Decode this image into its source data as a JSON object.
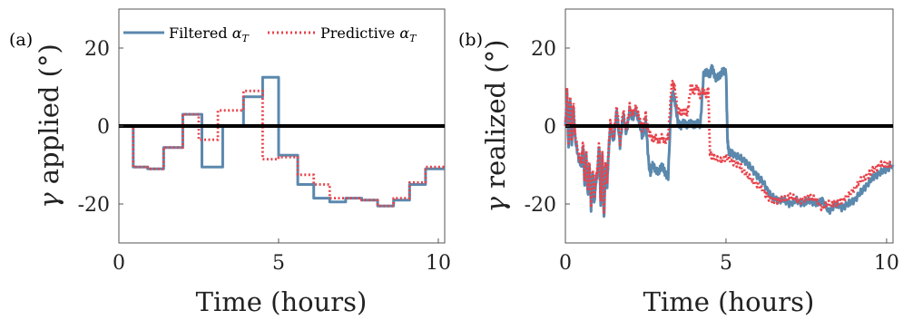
{
  "colors": {
    "filtered": "#5b88ad",
    "predictive": "#e8434b",
    "zero": "#000000"
  },
  "chart_data": [
    {
      "type": "line",
      "panel_label": "(a)",
      "xlabel": "Time (hours)",
      "ylabel_symbol": "γ",
      "ylabel_text": " applied (°)",
      "xlim": [
        0,
        10.2
      ],
      "ylim": [
        -30,
        30
      ],
      "xticks": [
        "0",
        "5",
        "10"
      ],
      "xtick_values": [
        0,
        5,
        10
      ],
      "yticks": [
        "-20",
        "0",
        "20"
      ],
      "ytick_values": [
        -20,
        0,
        20
      ],
      "grid": false,
      "legend": {
        "placement": "top",
        "entries": [
          {
            "label": "Filtered ",
            "symbol": "α",
            "sub": "T",
            "series": "filtered"
          },
          {
            "label": "Predictive ",
            "symbol": "α",
            "sub": "T",
            "series": "predictive"
          }
        ]
      },
      "series": [
        {
          "key": "filtered",
          "style": "solid",
          "step": true,
          "x": [
            0,
            0.45,
            0.9,
            1.4,
            2.0,
            2.6,
            3.25,
            3.9,
            4.5,
            5.0,
            5.6,
            6.1,
            6.6,
            7.1,
            7.6,
            8.1,
            8.6,
            9.1,
            9.6,
            10.2
          ],
          "y": [
            0,
            -10.5,
            -11,
            -5.5,
            3,
            -10.5,
            0,
            7.5,
            12.5,
            -7.5,
            -15,
            -18.5,
            -19.5,
            -18.5,
            -19,
            -20.5,
            -19,
            -15,
            -11,
            -11
          ]
        },
        {
          "key": "predictive",
          "style": "dotted",
          "step": true,
          "x": [
            0,
            0.45,
            0.9,
            1.4,
            2.0,
            2.5,
            3.1,
            3.9,
            4.5,
            5.0,
            5.6,
            6.1,
            6.6,
            7.1,
            7.6,
            8.1,
            8.6,
            9.1,
            9.6,
            10.2
          ],
          "y": [
            0,
            -10.5,
            -11,
            -5.5,
            3,
            -3.5,
            4,
            9,
            -8.5,
            -8,
            -12.5,
            -15,
            -18.5,
            -18.5,
            -19,
            -20.5,
            -18.5,
            -14.5,
            -10.5,
            -10.5
          ]
        }
      ]
    },
    {
      "type": "line",
      "panel_label": "(b)",
      "xlabel": "Time (hours)",
      "ylabel_symbol": "γ",
      "ylabel_text": " realized (°)",
      "xlim": [
        0,
        10.2
      ],
      "ylim": [
        -30,
        30
      ],
      "xticks": [
        "0",
        "5",
        "10"
      ],
      "xtick_values": [
        0,
        5,
        10
      ],
      "yticks": [
        "-20",
        "0",
        "20"
      ],
      "ytick_values": [
        -20,
        0,
        20
      ],
      "grid": false,
      "series": [
        {
          "key": "filtered",
          "style": "solid",
          "step": false,
          "x": [
            0,
            0.05,
            0.1,
            0.15,
            0.2,
            0.25,
            0.3,
            0.4,
            0.5,
            0.55,
            0.6,
            0.65,
            0.7,
            0.75,
            0.8,
            0.85,
            0.9,
            0.95,
            1.0,
            1.05,
            1.1,
            1.15,
            1.2,
            1.25,
            1.3,
            1.35,
            1.4,
            1.5,
            1.6,
            1.7,
            1.8,
            1.9,
            2.0,
            2.1,
            2.2,
            2.3,
            2.4,
            2.5,
            2.6,
            2.65,
            2.7,
            2.8,
            2.9,
            3.0,
            3.1,
            3.2,
            3.3,
            3.35,
            3.4,
            3.5,
            3.6,
            3.7,
            3.8,
            3.9,
            4.0,
            4.1,
            4.2,
            4.3,
            4.4,
            4.5,
            4.55,
            4.6,
            4.7,
            4.8,
            4.9,
            5.0,
            5.05,
            5.1,
            5.2,
            5.4,
            5.6,
            5.8,
            6.0,
            6.2,
            6.4,
            6.6,
            6.8,
            7.0,
            7.2,
            7.4,
            7.6,
            7.8,
            8.0,
            8.2,
            8.4,
            8.6,
            8.8,
            9.0,
            9.2,
            9.4,
            9.6,
            9.8,
            10.0,
            10.2
          ],
          "y": [
            0,
            8,
            -6,
            7,
            -4,
            5,
            -3,
            -8,
            -10,
            -5,
            -15,
            -8,
            -18,
            -10,
            -21,
            -12,
            -20,
            -14,
            -12,
            -5,
            -20,
            -8,
            -24,
            -10,
            -15,
            -6,
            0,
            -4,
            4,
            -5,
            3,
            -2,
            4,
            2,
            4,
            1,
            -3,
            1,
            -10,
            -12,
            -10,
            -11,
            -12,
            -10,
            -12,
            -13,
            7,
            8,
            7,
            1,
            0,
            1,
            0,
            1,
            0,
            1,
            0,
            13,
            14,
            13,
            15,
            14,
            12,
            13,
            14,
            14,
            -4,
            -7,
            -7,
            -8,
            -9,
            -11,
            -13,
            -15,
            -18,
            -19,
            -19,
            -20,
            -19,
            -20,
            -19,
            -20,
            -19,
            -22,
            -20,
            -21,
            -20,
            -19,
            -17,
            -15,
            -13,
            -12,
            -11,
            -10
          ],
          "jitter": 0.9
        },
        {
          "key": "predictive",
          "style": "dotted",
          "step": false,
          "x": [
            0,
            0.05,
            0.1,
            0.15,
            0.2,
            0.25,
            0.3,
            0.4,
            0.5,
            0.55,
            0.6,
            0.65,
            0.7,
            0.75,
            0.8,
            0.85,
            0.9,
            0.95,
            1.0,
            1.05,
            1.1,
            1.15,
            1.2,
            1.25,
            1.3,
            1.35,
            1.4,
            1.5,
            1.6,
            1.7,
            1.8,
            1.9,
            2.0,
            2.1,
            2.2,
            2.3,
            2.4,
            2.5,
            2.6,
            2.7,
            2.8,
            2.9,
            3.0,
            3.1,
            3.2,
            3.3,
            3.35,
            3.4,
            3.5,
            3.6,
            3.7,
            3.8,
            3.9,
            4.0,
            4.1,
            4.2,
            4.3,
            4.4,
            4.45,
            4.5,
            4.6,
            4.8,
            5.0,
            5.2,
            5.4,
            5.6,
            5.8,
            6.0,
            6.2,
            6.4,
            6.6,
            6.8,
            7.0,
            7.2,
            7.4,
            7.6,
            7.8,
            8.0,
            8.2,
            8.4,
            8.6,
            8.8,
            9.0,
            9.2,
            9.4,
            9.6,
            9.8,
            10.0,
            10.2
          ],
          "y": [
            0,
            9,
            -5,
            8,
            -3,
            6,
            -2,
            -7,
            -9,
            -4,
            -14,
            -7,
            -17,
            -9,
            -20,
            -11,
            -19,
            -13,
            -11,
            -4,
            -19,
            -7,
            -23,
            -9,
            -14,
            -5,
            1,
            -3,
            5,
            -4,
            4,
            -1,
            5,
            3,
            5,
            2,
            -1,
            3,
            -2,
            -3,
            -3,
            -4,
            -3,
            -4,
            -3,
            10,
            11,
            10,
            4,
            3,
            4,
            3,
            10,
            9,
            10,
            8,
            9,
            8,
            9,
            -7,
            -8,
            -9,
            -8,
            -9,
            -10,
            -12,
            -14,
            -15,
            -17,
            -19,
            -19,
            -19,
            -18,
            -19,
            -19,
            -18,
            -19,
            -21,
            -20,
            -20,
            -19,
            -18,
            -16,
            -14,
            -13,
            -11,
            -10,
            -10,
            -10
          ],
          "jitter": 0.9
        }
      ]
    }
  ]
}
